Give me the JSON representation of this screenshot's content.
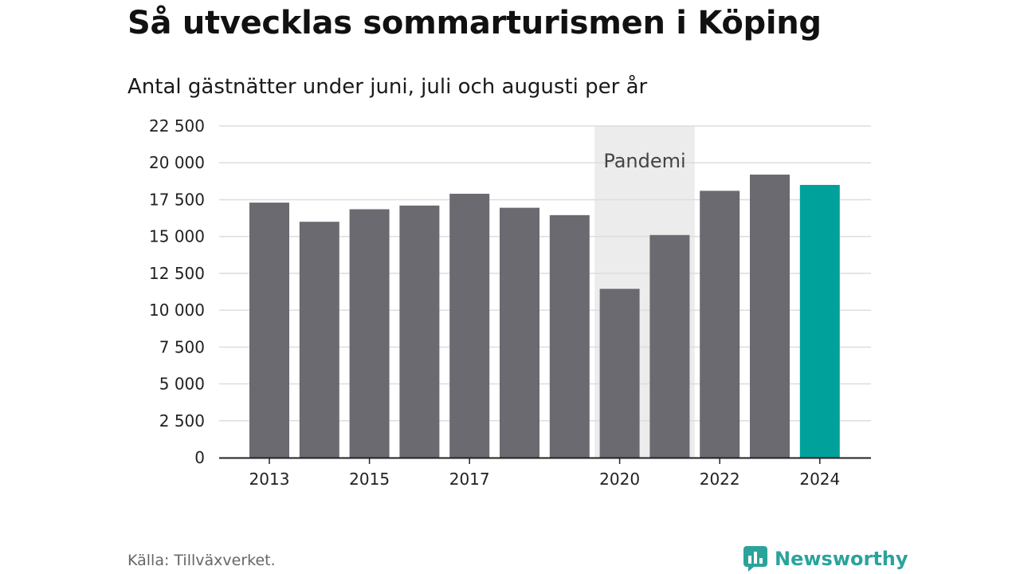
{
  "title": "Så utvecklas sommarturismen i Köping",
  "subtitle": "Antal gästnätter under juni, juli och augusti per år",
  "source": "Källa: Tillväxverket.",
  "brand": {
    "name": "Newsworthy",
    "color": "#2aa39b",
    "icon": "newsworthy-logo-icon"
  },
  "chart_data": {
    "type": "bar",
    "categories": [
      "2013",
      "2014",
      "2015",
      "2016",
      "2017",
      "2018",
      "2019",
      "2020",
      "2021",
      "2022",
      "2023",
      "2024"
    ],
    "values": [
      17300,
      16000,
      16850,
      17100,
      17900,
      16950,
      16450,
      11450,
      15100,
      18100,
      19200,
      18500
    ],
    "x_tick_labels": [
      "2013",
      "2015",
      "2017",
      "2020",
      "2022",
      "2024"
    ],
    "y_ticks": [
      0,
      2500,
      5000,
      7500,
      10000,
      12500,
      15000,
      17500,
      20000,
      22500
    ],
    "y_tick_labels": [
      "0",
      "2 500",
      "5 000",
      "7 500",
      "10 000",
      "12 500",
      "15 000",
      "17 500",
      "20 000",
      "22 500"
    ],
    "ylim": [
      0,
      22500
    ],
    "grid": true,
    "xlabel": "",
    "ylabel": "",
    "bar_color": "#6b6a70",
    "highlight_category": "2024",
    "highlight_color": "#00a19a",
    "annotation": {
      "label": "Pandemi",
      "x_range": [
        "2020",
        "2021"
      ],
      "color": "#ececec"
    }
  }
}
